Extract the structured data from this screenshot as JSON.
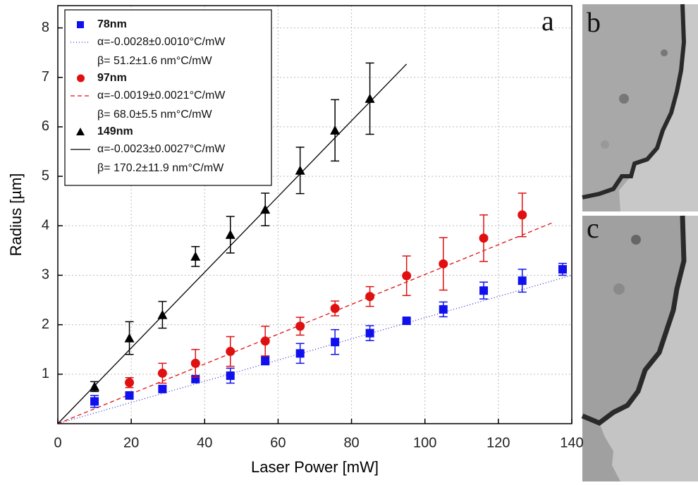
{
  "chart_data": {
    "type": "scatter",
    "panel_label": "a",
    "xlabel": "Laser Power [mW]",
    "ylabel": "Radius [µm]",
    "xlim": [
      0,
      140
    ],
    "ylim": [
      0,
      8.45
    ],
    "xticks": [
      0,
      20,
      40,
      60,
      80,
      100,
      120,
      140
    ],
    "yticks": [
      1,
      2,
      3,
      4,
      5,
      6,
      7,
      8
    ],
    "grid": true,
    "series": [
      {
        "name": "78nm",
        "color": "#1010ee",
        "marker": "square",
        "x": [
          10,
          19.5,
          28.5,
          37.5,
          47,
          56.5,
          66,
          75.5,
          85,
          95,
          105,
          116,
          126.5,
          137.5
        ],
        "values": [
          0.45,
          0.57,
          0.7,
          0.9,
          0.97,
          1.27,
          1.42,
          1.65,
          1.83,
          2.08,
          2.31,
          2.69,
          2.89,
          3.12
        ],
        "errors": [
          0.12,
          0.05,
          0.05,
          0.05,
          0.15,
          0.08,
          0.2,
          0.25,
          0.15,
          0.03,
          0.15,
          0.17,
          0.23,
          0.12
        ]
      },
      {
        "name": "97nm",
        "color": "#e01010",
        "marker": "circle",
        "x": [
          19.5,
          28.5,
          37.5,
          47,
          56.5,
          66,
          75.5,
          85,
          95,
          105,
          116,
          126.5
        ],
        "values": [
          0.83,
          1.02,
          1.22,
          1.46,
          1.67,
          1.97,
          2.33,
          2.57,
          2.99,
          3.23,
          3.75,
          4.22
        ],
        "errors": [
          0.1,
          0.2,
          0.28,
          0.3,
          0.3,
          0.18,
          0.15,
          0.2,
          0.4,
          0.53,
          0.47,
          0.44
        ]
      },
      {
        "name": "149nm",
        "color": "#000000",
        "marker": "triangle",
        "x": [
          10,
          19.5,
          28.5,
          37.5,
          47,
          56.5,
          66,
          75.5,
          85
        ],
        "values": [
          0.75,
          1.73,
          2.2,
          3.38,
          3.82,
          4.33,
          5.12,
          5.93,
          6.57
        ],
        "errors": [
          0.1,
          0.33,
          0.27,
          0.2,
          0.37,
          0.33,
          0.47,
          0.62,
          0.72
        ]
      }
    ],
    "fits": [
      {
        "name": "α=-0.0028±0.0010°C/mW",
        "annotation": "β= 51.2±1.6 nm°C/mW",
        "color": "#3030cc",
        "dash": "1 3",
        "x": [
          0,
          140
        ],
        "values": [
          0,
          3.0
        ]
      },
      {
        "name": "α=-0.0019±0.0021°C/mW",
        "annotation": "β= 68.0±5.5 nm°C/mW",
        "color": "#e01010",
        "dash": "6 4",
        "x": [
          0,
          135
        ],
        "values": [
          0,
          4.07
        ]
      },
      {
        "name": "α=-0.0023±0.0027°C/mW",
        "annotation": "β= 170.2±11.9 nm°C/mW",
        "color": "#000000",
        "dash": "none",
        "x": [
          0,
          95
        ],
        "values": [
          0,
          7.27
        ]
      }
    ]
  },
  "images": [
    {
      "label": "b"
    },
    {
      "label": "c"
    }
  ]
}
